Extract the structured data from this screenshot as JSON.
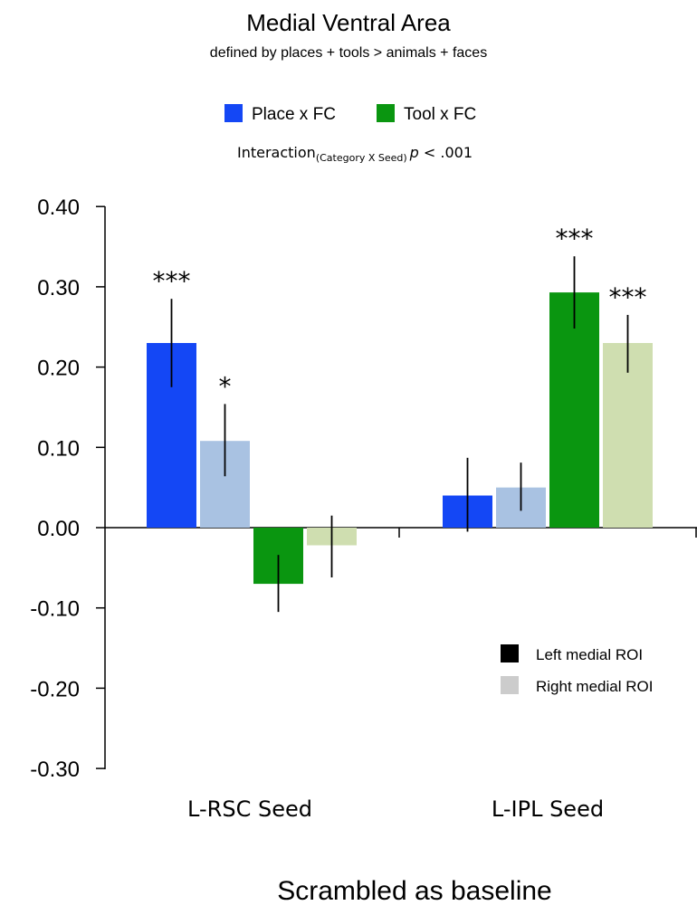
{
  "chart_data": {
    "type": "bar",
    "title": "Medial Ventral Area",
    "subtitle": "defined by places + tools > animals + faces",
    "interaction_note": {
      "prefix": "Interaction",
      "subscript": "(Category X Seed)",
      "p": "p",
      "suffix": " < .001"
    },
    "xlabel": "Scrambled as baseline",
    "ylim": [
      -0.3,
      0.4
    ],
    "yticks": [
      "0.40",
      "0.30",
      "0.20",
      "0.10",
      "0.00",
      "-0.10",
      "-0.20",
      "-0.30"
    ],
    "ytick_values": [
      0.4,
      0.3,
      0.2,
      0.1,
      0.0,
      -0.1,
      -0.2,
      -0.3
    ],
    "categories": [
      "L-RSC Seed",
      "L-IPL Seed"
    ],
    "legend_top": [
      {
        "label": "Place x FC",
        "color": "#1447f5"
      },
      {
        "label": "Tool x FC",
        "color": "#0a9610"
      }
    ],
    "legend_bottom": [
      {
        "label": "Left medial ROI",
        "color": "#000000"
      },
      {
        "label": "Right medial ROI",
        "color": "#cccccc"
      }
    ],
    "series": [
      {
        "name": "Place x FC Left medial ROI",
        "color": "#1447f5",
        "values": [
          0.23,
          0.04
        ],
        "err_low": [
          0.175,
          -0.005
        ],
        "err_high": [
          0.285,
          0.087
        ],
        "sig": [
          "***",
          ""
        ]
      },
      {
        "name": "Place x FC Right medial ROI",
        "color": "#a9c2e2",
        "values": [
          0.108,
          0.05
        ],
        "err_low": [
          0.064,
          0.021
        ],
        "err_high": [
          0.154,
          0.081
        ],
        "sig": [
          "*",
          ""
        ]
      },
      {
        "name": "Tool x FC Left medial ROI",
        "color": "#0a9610",
        "values": [
          -0.07,
          0.293
        ],
        "err_low": [
          -0.105,
          0.248
        ],
        "err_high": [
          -0.034,
          0.338
        ],
        "sig": [
          "",
          "***"
        ]
      },
      {
        "name": "Tool x FC Right medial ROI",
        "color": "#cfdeb0",
        "values": [
          -0.022,
          0.23
        ],
        "err_low": [
          -0.062,
          0.193
        ],
        "err_high": [
          0.015,
          0.265
        ],
        "sig": [
          "",
          "***"
        ]
      }
    ]
  }
}
